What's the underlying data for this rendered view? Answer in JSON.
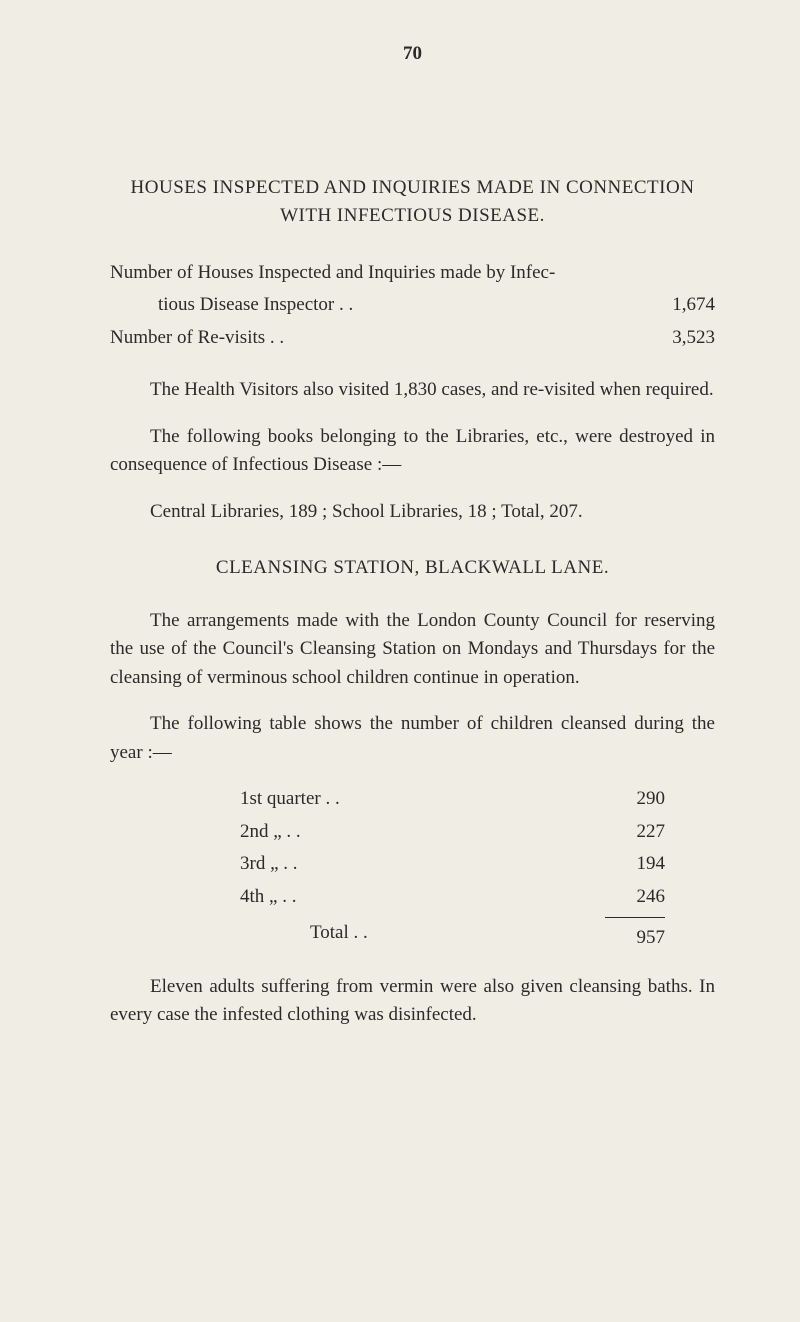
{
  "page_number": "70",
  "heading": "HOUSES INSPECTED AND INQUIRIES MADE IN CONNECTION WITH INFECTIOUS DISEASE.",
  "stats": {
    "line1_a": "Number of Houses Inspected and Inquiries made by Infec-",
    "line1_b": "tious Disease Inspector  . .",
    "line1_value": "1,674",
    "line2_label": "Number of Re-visits   . .",
    "line2_value": "3,523"
  },
  "para1": "The Health Visitors also visited 1,830 cases, and re-visited when required.",
  "para2": "The following books belonging to the Libraries, etc., were destroyed in consequence of Infectious Disease :—",
  "para3": "Central Libraries, 189 ; School Libraries, 18 ; Total, 207.",
  "sub_heading": "CLEANSING STATION, BLACKWALL LANE.",
  "para4": "The arrangements made with the London County Council for reserving the use of the Council's Cleansing Station on Mondays and Thursdays for the cleansing of verminous school children continue in operation.",
  "para5": "The following table shows the number of children cleansed during the year :—",
  "quarters": [
    {
      "label": "1st quarter . .",
      "value": "290"
    },
    {
      "label": "2nd     „      . .",
      "value": "227"
    },
    {
      "label": "3rd     „      . .",
      "value": "194"
    },
    {
      "label": "4th     „      . .",
      "value": "246"
    }
  ],
  "total_label": "Total . .",
  "total_value": "957",
  "para6": "Eleven adults suffering from vermin were also given cleansing baths.  In every case the infested clothing was disinfected."
}
